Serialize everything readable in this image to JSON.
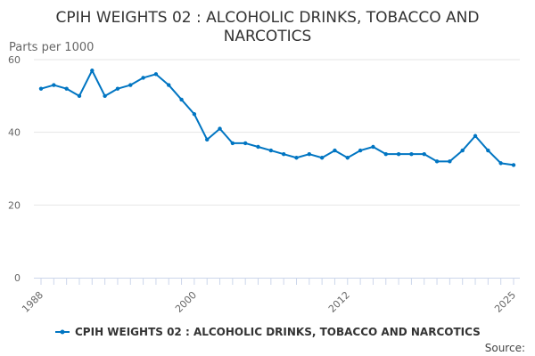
{
  "chart_data": {
    "type": "line",
    "title_lines": [
      "CPIH WEIGHTS 02 : ALCOHOLIC DRINKS, TOBACCO AND",
      "NARCOTICS"
    ],
    "ylabel": "Parts per 1000",
    "xlabel": "",
    "source_label": "Source:",
    "x_tick_labels": [
      "1988",
      "2000",
      "2012",
      "2025"
    ],
    "y_tick_labels": [
      "0",
      "20",
      "40",
      "60"
    ],
    "xlim": [
      1988,
      2025
    ],
    "ylim": [
      0,
      60
    ],
    "grid": true,
    "legend_position": "bottom",
    "series": [
      {
        "name": "CPIH WEIGHTS 02 : ALCOHOLIC DRINKS, TOBACCO AND NARCOTICS",
        "color": "#0075c2",
        "x": [
          1988,
          1989,
          1990,
          1991,
          1992,
          1993,
          1994,
          1995,
          1996,
          1997,
          1998,
          1999,
          2000,
          2001,
          2002,
          2003,
          2004,
          2005,
          2006,
          2007,
          2008,
          2009,
          2010,
          2011,
          2012,
          2013,
          2014,
          2015,
          2016,
          2017,
          2018,
          2019,
          2020,
          2021,
          2022,
          2023,
          2024,
          2025
        ],
        "values": [
          52,
          53,
          52,
          50,
          57,
          50,
          52,
          53,
          55,
          56,
          53,
          49,
          45,
          38,
          41,
          37,
          37,
          36,
          35,
          34,
          33,
          34,
          33,
          35,
          33,
          35,
          36,
          34,
          34,
          34,
          34,
          32,
          32,
          35,
          39,
          35,
          31.5,
          31
        ]
      }
    ]
  }
}
